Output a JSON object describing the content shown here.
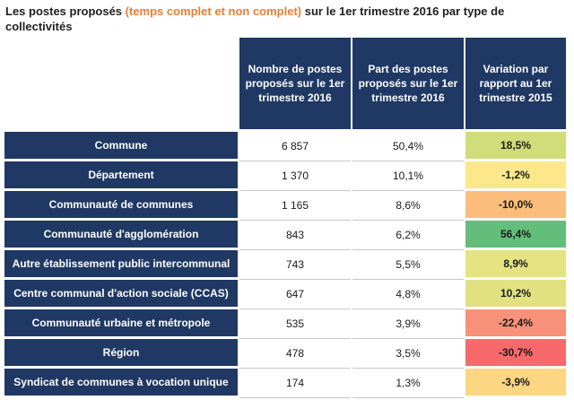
{
  "title": {
    "part1": "Les postes proposés ",
    "highlight": "(temps complet et non complet)",
    "part2": " sur le 1er trimestre 2016 par type de collectivités"
  },
  "headers": {
    "col1": "Nombre de postes proposés sur le 1er trimestre 2016",
    "col2": "Part des postes proposés sur le 1er trimestre 2016",
    "col3": "Variation par rapport au 1er trimestre 2015"
  },
  "colors": {
    "header_bg": "#1f3864",
    "title_highlight": "#ed7d31"
  },
  "rows": [
    {
      "label": "Commune",
      "nombre": "6 857",
      "part": "50,4%",
      "variation": "18,5%",
      "color": "#cfdd7a"
    },
    {
      "label": "Département",
      "nombre": "1 370",
      "part": "10,1%",
      "variation": "-1,2%",
      "color": "#fce88a"
    },
    {
      "label": "Communauté de communes",
      "nombre": "1 165",
      "part": "8,6%",
      "variation": "-10,0%",
      "color": "#fbbd7b"
    },
    {
      "label": "Communauté d'agglomération",
      "nombre": "843",
      "part": "6,2%",
      "variation": "56,4%",
      "color": "#63be7b"
    },
    {
      "label": "Autre établissement public intercommunal",
      "nombre": "743",
      "part": "5,5%",
      "variation": "8,9%",
      "color": "#e6e383"
    },
    {
      "label": "Centre communal d'action sociale (CCAS)",
      "nombre": "647",
      "part": "4,8%",
      "variation": "10,2%",
      "color": "#e1e182"
    },
    {
      "label": "Communauté urbaine et métropole",
      "nombre": "535",
      "part": "3,9%",
      "variation": "-22,4%",
      "color": "#f8917a"
    },
    {
      "label": "Région",
      "nombre": "478",
      "part": "3,5%",
      "variation": "-30,7%",
      "color": "#f8696b"
    },
    {
      "label": "Syndicat de communes à vocation unique",
      "nombre": "174",
      "part": "1,3%",
      "variation": "-3,9%",
      "color": "#fdd683"
    }
  ]
}
